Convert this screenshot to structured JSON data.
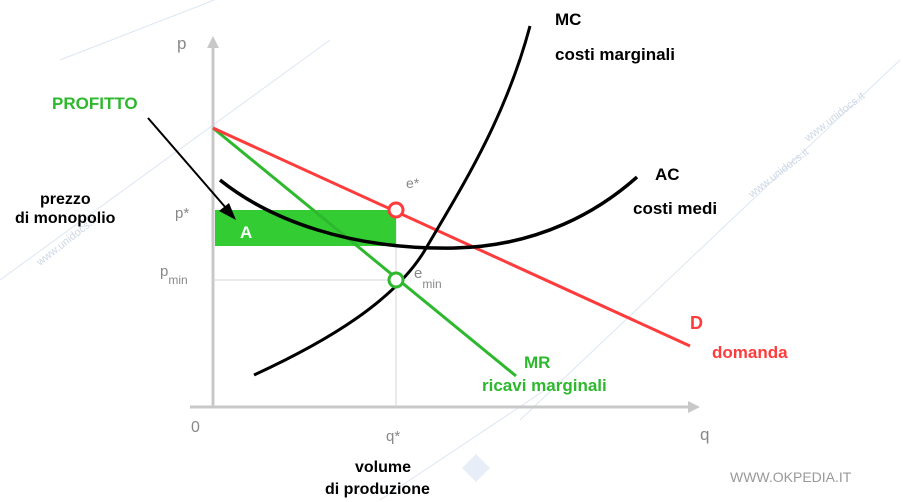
{
  "axes": {
    "y_label": "p",
    "x_label": "q",
    "origin_label": "0",
    "x_title_line1": "volume",
    "x_title_line2": "di produzione"
  },
  "ticks": {
    "p_star": "p*",
    "p_min_main": "p",
    "p_min_sub": "min",
    "q_star": "q*"
  },
  "left_label": {
    "line1": "prezzo",
    "line2": "di monopolio"
  },
  "profit": {
    "title": "PROFITTO",
    "area_label": "A"
  },
  "curves": {
    "mc": {
      "symbol": "MC",
      "name": "costi marginali"
    },
    "ac": {
      "symbol": "AC",
      "name": "costi medi"
    },
    "mr": {
      "symbol": "MR",
      "name": "ricavi marginali"
    },
    "d": {
      "symbol": "D",
      "name": "domanda"
    }
  },
  "points": {
    "e_star": "e*",
    "e_min_main": "e",
    "e_min_sub": "min"
  },
  "colors": {
    "demand": "#ff3b3b",
    "marginal_revenue": "#2db82d",
    "profit_fill": "#33cc33",
    "cost_curves": "#000000",
    "axes": "#c8c8c8",
    "muted_text": "#888888"
  },
  "footer": {
    "site": "WWW.OKPEDIA.IT"
  },
  "watermark": {
    "text": "www.unidocs.it"
  }
}
